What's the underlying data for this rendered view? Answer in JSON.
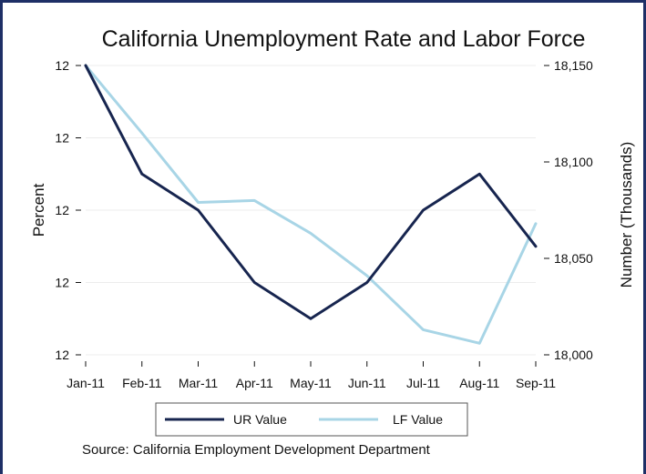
{
  "chart_data": {
    "type": "line",
    "title": "California Unemployment Rate and Labor Force",
    "categories": [
      "Jan-11",
      "Feb-11",
      "Mar-11",
      "Apr-11",
      "May-11",
      "Jun-11",
      "Jul-11",
      "Aug-11",
      "Sep-11"
    ],
    "left_axis": {
      "label": "Percent",
      "tick_labels": [
        "12",
        "12",
        "12",
        "12",
        "12"
      ],
      "ylim": [
        0,
        4
      ]
    },
    "right_axis": {
      "label": "Number (Thousands)",
      "ticks": [
        18000,
        18050,
        18100,
        18150
      ],
      "tick_labels": [
        "18,000",
        "18,050",
        "18,100",
        "18,150"
      ],
      "ylim": [
        18000,
        18150
      ]
    },
    "series": [
      {
        "name": "UR Value",
        "axis": "left",
        "color": "#17254f",
        "values": [
          4.0,
          2.5,
          2.0,
          1.0,
          0.5,
          1.0,
          2.0,
          2.5,
          1.5
        ]
      },
      {
        "name": "LF Value",
        "axis": "right",
        "color": "#a8d5e6",
        "values": [
          18150,
          18115,
          18079,
          18080,
          18063,
          18041,
          18013,
          18006,
          18068
        ]
      }
    ],
    "legend": {
      "placement": "bottom"
    },
    "grid": true,
    "source": "Source: California Employment Development Department"
  }
}
